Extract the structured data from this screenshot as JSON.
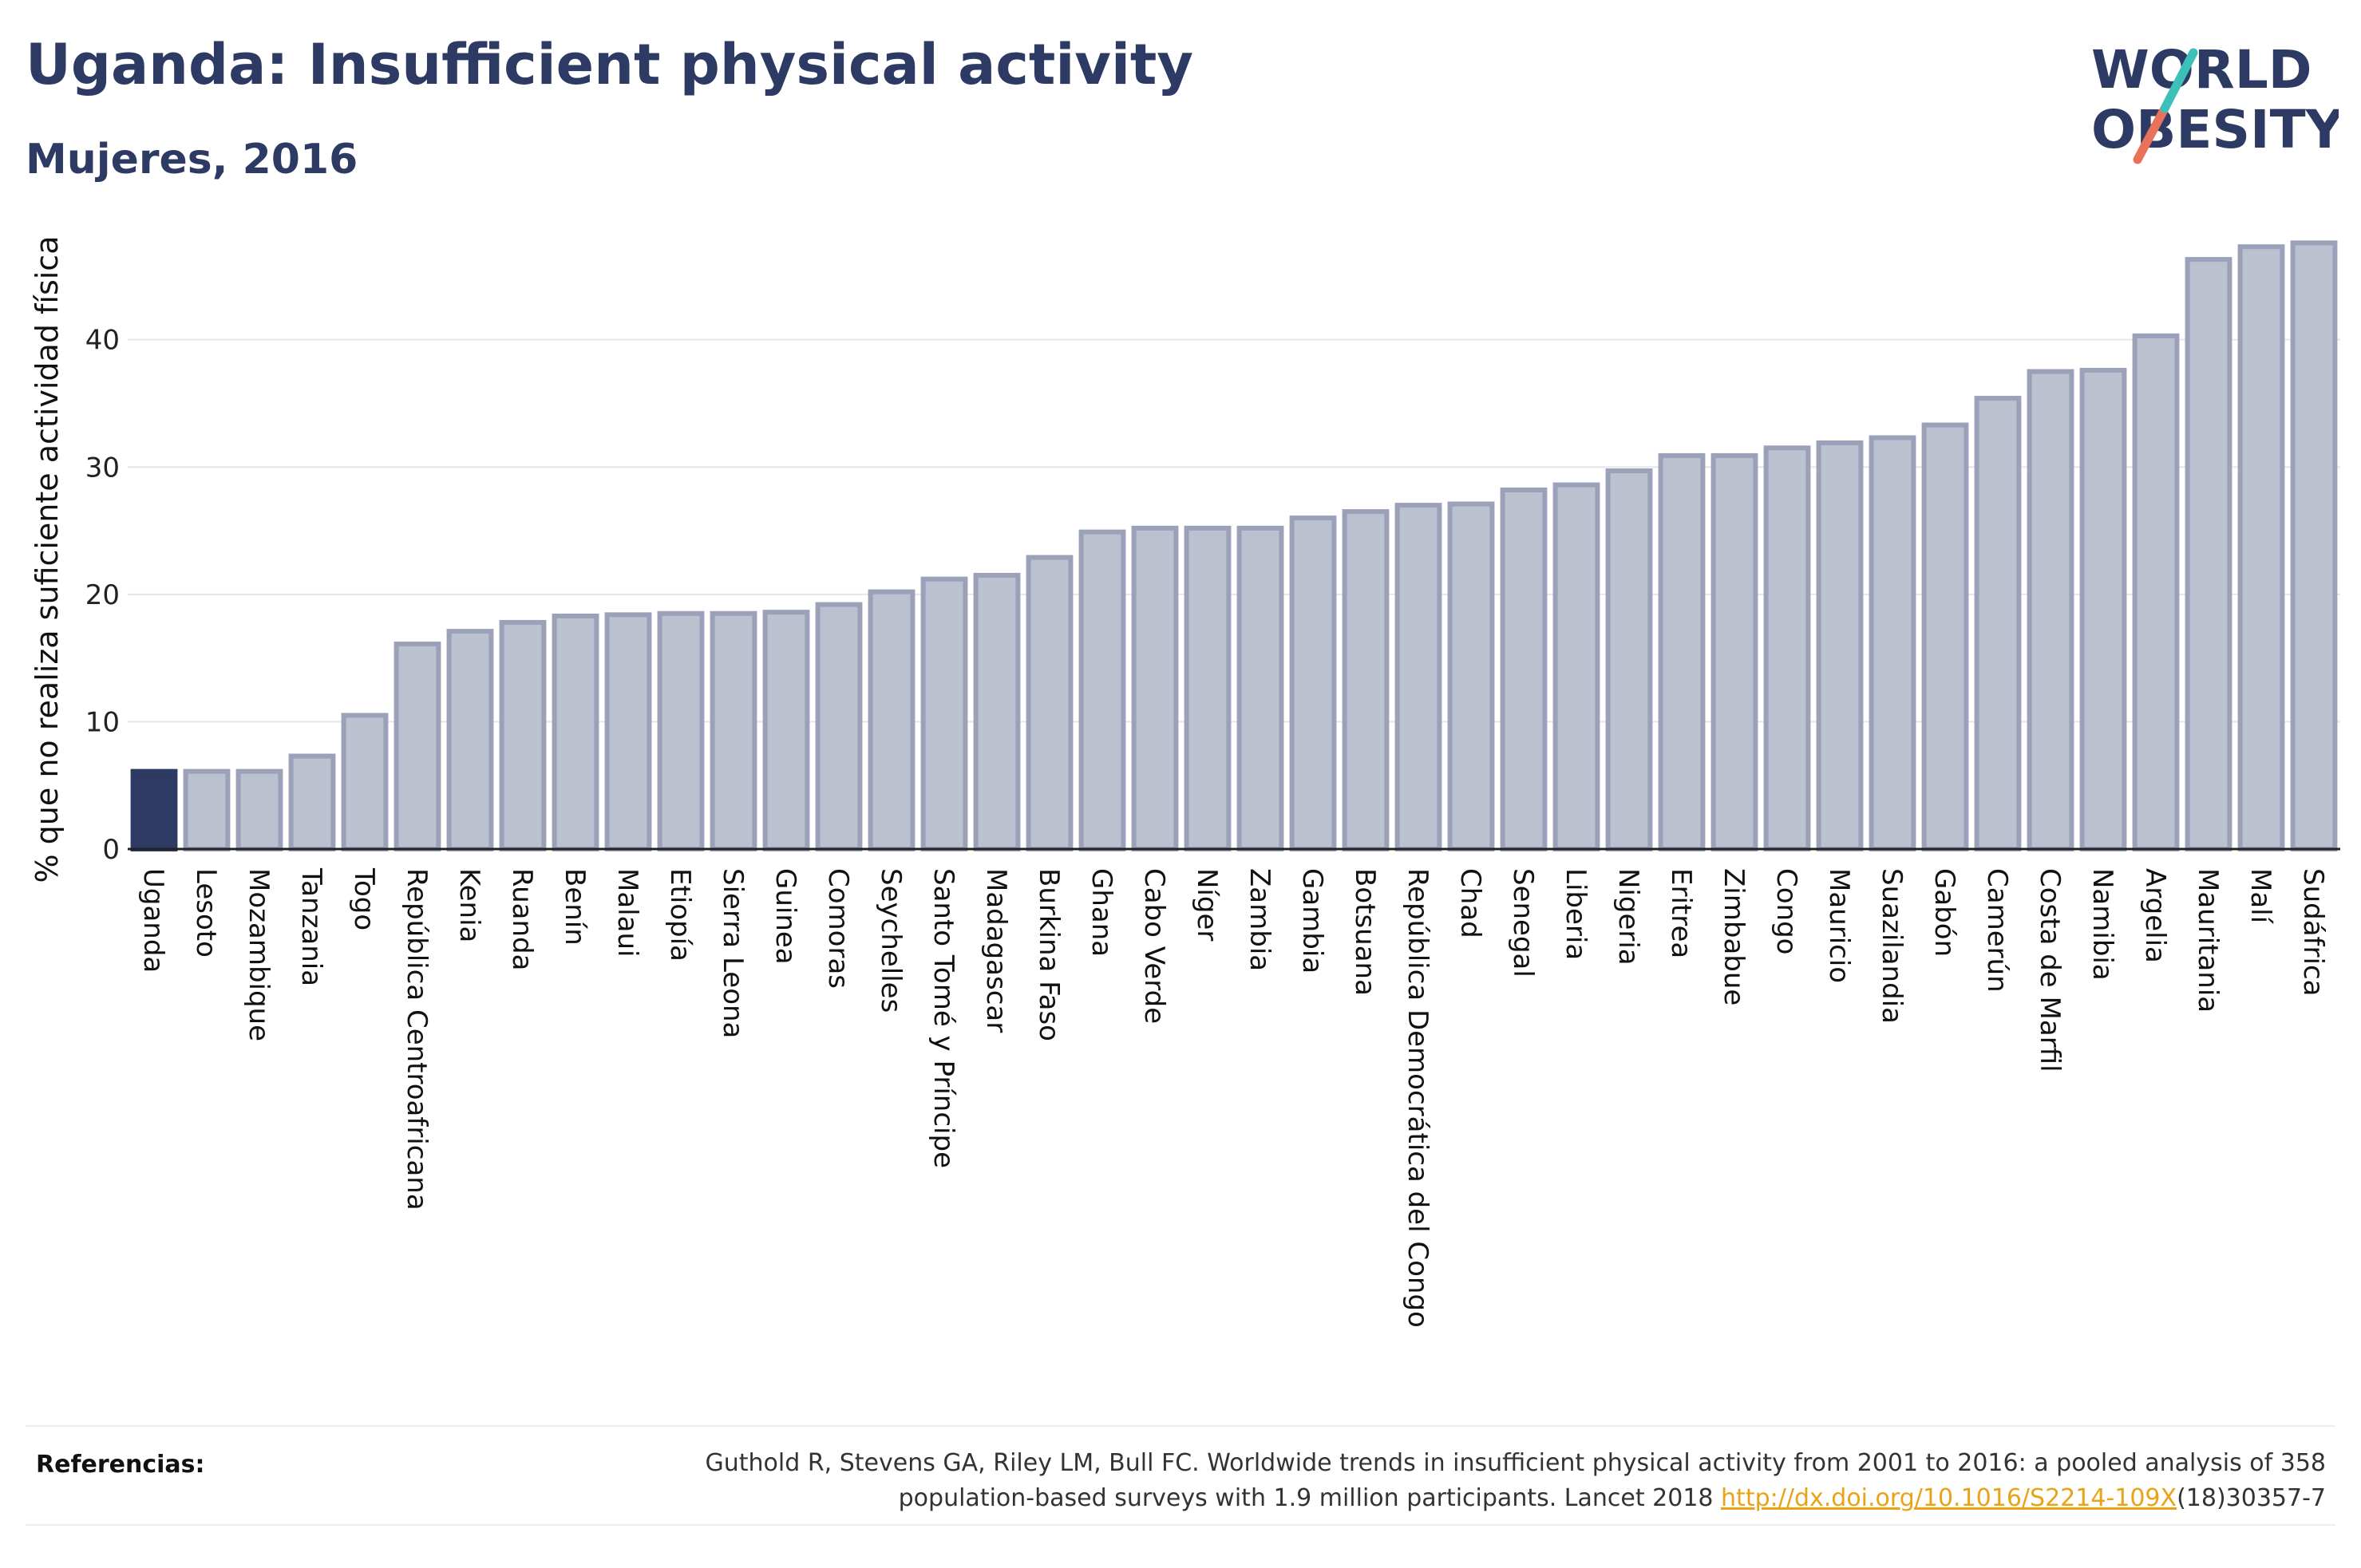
{
  "header": {
    "title": "Uganda: Insufficient physical activity",
    "subtitle": "Mujeres, 2016"
  },
  "logo": {
    "line1": "WORLD",
    "line2": "OBESITY"
  },
  "colors": {
    "highlight": "#2d3a63",
    "bar_fill": "#bcc1cf",
    "bar_stroke": "#9aa1b8",
    "logo_teal": "#3cc0b8",
    "logo_coral": "#e8735a",
    "link": "#e8a317"
  },
  "chart_data": {
    "type": "bar",
    "ylabel": "% que no realiza suficiente actividad física",
    "ylim": [
      0,
      48
    ],
    "yticks": [
      0,
      10,
      20,
      30,
      40
    ],
    "highlight_category": "Uganda",
    "categories": [
      "Uganda",
      "Lesoto",
      "Mozambique",
      "Tanzania",
      "Togo",
      "República Centroafricana",
      "Kenia",
      "Ruanda",
      "Benín",
      "Malaui",
      "Etiopía",
      "Sierra Leona",
      "Guinea",
      "Comoras",
      "Seychelles",
      "Santo Tomé y Príncipe",
      "Madagascar",
      "Burkina Faso",
      "Ghana",
      "Cabo Verde",
      "Níger",
      "Zambia",
      "Gambia",
      "Botsuana",
      "República Democrática del Congo",
      "Chad",
      "Senegal",
      "Liberia",
      "Nigeria",
      "Eritrea",
      "Zimbabue",
      "Congo",
      "Mauricio",
      "Suazilandia",
      "Gabón",
      "Camerún",
      "Costa de Marfil",
      "Namibia",
      "Argelia",
      "Mauritania",
      "Malí",
      "Sudáfrica"
    ],
    "values": [
      6.1,
      6.1,
      6.1,
      7.3,
      10.5,
      16.1,
      17.1,
      17.8,
      18.3,
      18.4,
      18.5,
      18.5,
      18.6,
      19.2,
      20.2,
      21.2,
      21.5,
      22.9,
      24.9,
      25.2,
      25.2,
      25.2,
      26.0,
      26.5,
      27.0,
      27.1,
      28.2,
      28.6,
      29.7,
      30.9,
      30.9,
      31.5,
      31.9,
      32.3,
      33.3,
      35.4,
      37.5,
      37.6,
      40.3,
      46.3,
      47.3,
      47.6
    ],
    "grid": true,
    "legend": "none"
  },
  "footer": {
    "ref_label": "Referencias:",
    "ref_line1": "Guthold R, Stevens GA, Riley LM, Bull FC. Worldwide trends in insufficient physical activity from 2001 to 2016: a pooled analysis of 358",
    "ref_line2_pre": "population-based surveys with 1.9 million participants. Lancet 2018 ",
    "ref_link": "http://dx.doi.org/10.1016/S2214-109X",
    "ref_line2_post": "(18)30357-7"
  }
}
